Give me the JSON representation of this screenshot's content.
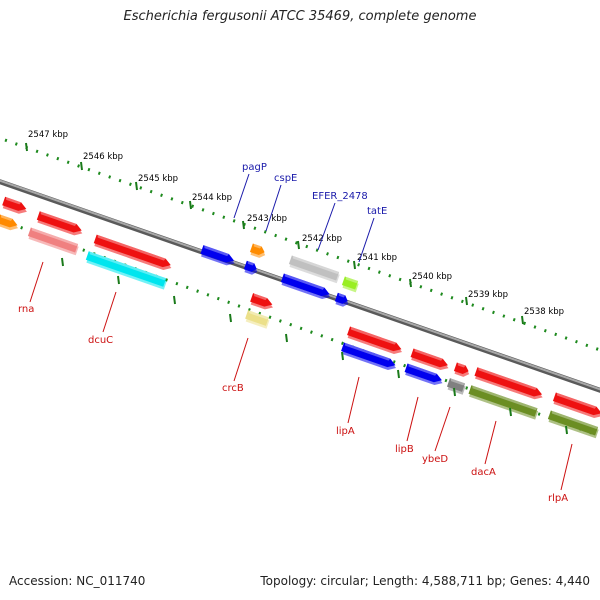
{
  "title": "Escherichia fergusonii ATCC 35469, complete genome",
  "footer": {
    "accession": "Accession: NC_011740",
    "topology": "Topology: circular; Length: 4,588,711 bp; Genes: 4,440"
  },
  "colors": {
    "backbone": "#808080",
    "tick_major": "#1a7a1a",
    "tick_minor": "#1e8a1e",
    "label_blue": "#1a1aaa",
    "label_red": "#cc1111"
  },
  "ticks": [
    {
      "label": "2547 kbp"
    },
    {
      "label": "2546 kbp"
    },
    {
      "label": "2545 kbp"
    },
    {
      "label": "2544 kbp"
    },
    {
      "label": "2543 kbp"
    },
    {
      "label": "2542 kbp"
    },
    {
      "label": "2541 kbp"
    },
    {
      "label": "2540 kbp"
    },
    {
      "label": "2539 kbp"
    },
    {
      "label": "2538 kbp"
    }
  ],
  "genes": [
    {
      "name": "pagP",
      "color": "#1a1aaa"
    },
    {
      "name": "cspE",
      "color": "#1a1aaa"
    },
    {
      "name": "EFER_2478",
      "color": "#1a1aaa"
    },
    {
      "name": "tatE",
      "color": "#1a1aaa"
    },
    {
      "name": "rna",
      "color": "#cc1111"
    },
    {
      "name": "dcuC",
      "color": "#cc1111"
    },
    {
      "name": "crcB",
      "color": "#cc1111"
    },
    {
      "name": "lipA",
      "color": "#cc1111"
    },
    {
      "name": "lipB",
      "color": "#cc1111"
    },
    {
      "name": "ybeD",
      "color": "#cc1111"
    },
    {
      "name": "dacA",
      "color": "#cc1111"
    },
    {
      "name": "rlpA",
      "color": "#cc1111"
    }
  ],
  "features": [
    {
      "color": "#ee1111"
    },
    {
      "color": "#ee1111"
    },
    {
      "color": "#ee1111"
    },
    {
      "color": "#ff8a00"
    },
    {
      "color": "#f08080"
    },
    {
      "color": "#00e5ee"
    },
    {
      "color": "#0000ee"
    },
    {
      "color": "#0000ee"
    },
    {
      "color": "#ff8c00"
    },
    {
      "color": "#c0c0c0"
    },
    {
      "color": "#0000ee"
    },
    {
      "color": "#99ee22"
    },
    {
      "color": "#0000ee"
    },
    {
      "color": "#ee1111"
    },
    {
      "color": "#ece08a"
    },
    {
      "color": "#ee1111"
    },
    {
      "color": "#0000ee"
    },
    {
      "color": "#ee1111"
    },
    {
      "color": "#0000ee"
    },
    {
      "color": "#ee1111"
    },
    {
      "color": "#808080"
    },
    {
      "color": "#ee1111"
    },
    {
      "color": "#6b8e23"
    },
    {
      "color": "#ee1111"
    },
    {
      "color": "#6b8e23"
    }
  ]
}
